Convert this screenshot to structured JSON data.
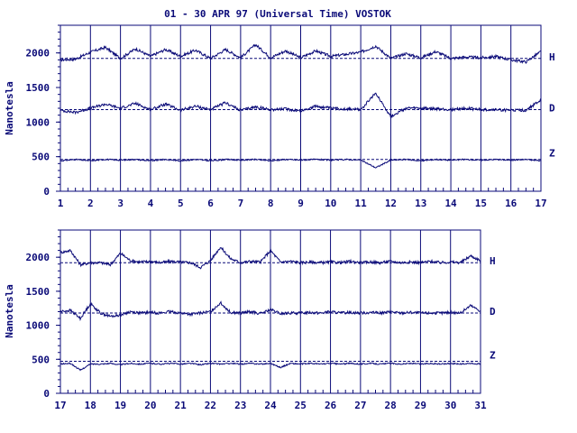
{
  "title": "01 - 30 APR 97 (Universal Time) VOSTOK",
  "colors": {
    "ink": "#0a0a78",
    "background": "#ffffff"
  },
  "chart_data": [
    {
      "type": "line",
      "panel": "top",
      "ylabel": "Nanotesla",
      "ylim": [
        0,
        2400
      ],
      "yticks": [
        0,
        500,
        1000,
        1500,
        2000
      ],
      "xlim": [
        1,
        17
      ],
      "xticks": [
        "1",
        "2",
        "3",
        "4",
        "5",
        "6",
        "7",
        "8",
        "9",
        "10",
        "11",
        "12",
        "13",
        "14",
        "15",
        "16",
        "17"
      ],
      "grid": true,
      "series": [
        {
          "name": "H",
          "baseline": 1920,
          "values": [
            1900,
            1910,
            2010,
            2080,
            1920,
            2060,
            1950,
            2050,
            1950,
            2040,
            1920,
            2050,
            1930,
            2120,
            1930,
            2030,
            1930,
            2030,
            1950,
            1980,
            2010,
            2100,
            1920,
            1990,
            1930,
            2020,
            1920,
            1940,
            1930,
            1950,
            1900,
            1870,
            2020
          ]
        },
        {
          "name": "D",
          "baseline": 1180,
          "values": [
            1170,
            1140,
            1200,
            1260,
            1200,
            1270,
            1180,
            1260,
            1170,
            1230,
            1180,
            1280,
            1170,
            1220,
            1180,
            1190,
            1160,
            1230,
            1200,
            1190,
            1180,
            1420,
            1080,
            1200,
            1200,
            1190,
            1180,
            1200,
            1180,
            1180,
            1170,
            1170,
            1320
          ]
        },
        {
          "name": "Z",
          "baseline": 460,
          "values": [
            440,
            460,
            440,
            460,
            450,
            460,
            440,
            460,
            440,
            460,
            440,
            460,
            450,
            460,
            440,
            460,
            450,
            460,
            450,
            460,
            450,
            340,
            450,
            460,
            440,
            460,
            450,
            460,
            450,
            460,
            450,
            460,
            440
          ]
        }
      ]
    },
    {
      "type": "line",
      "panel": "bottom",
      "ylabel": "Nanotesla",
      "ylim": [
        0,
        2400
      ],
      "yticks": [
        0,
        500,
        1000,
        1500,
        2000
      ],
      "xlim": [
        17,
        31
      ],
      "xticks": [
        "17",
        "18",
        "19",
        "20",
        "21",
        "22",
        "23",
        "24",
        "25",
        "26",
        "27",
        "28",
        "29",
        "30",
        "31"
      ],
      "grid": true,
      "series": [
        {
          "name": "H",
          "baseline": 1920,
          "values": [
            2070,
            2100,
            1890,
            1920,
            1920,
            1890,
            2060,
            1950,
            1930,
            1940,
            1920,
            1940,
            1930,
            1920,
            1850,
            1950,
            2150,
            1980,
            1920,
            1940,
            1930,
            2100,
            1930,
            1940,
            1920,
            1930,
            1920,
            1930,
            1920,
            1940,
            1920,
            1930,
            1920,
            1940,
            1920,
            1930,
            1920,
            1940,
            1920,
            1930,
            1920,
            2020,
            1950
          ]
        },
        {
          "name": "D",
          "baseline": 1180,
          "values": [
            1200,
            1220,
            1100,
            1320,
            1180,
            1130,
            1150,
            1200,
            1180,
            1190,
            1180,
            1200,
            1180,
            1160,
            1180,
            1200,
            1330,
            1190,
            1180,
            1200,
            1170,
            1230,
            1170,
            1180,
            1180,
            1190,
            1180,
            1200,
            1180,
            1190,
            1180,
            1190,
            1180,
            1200,
            1180,
            1190,
            1180,
            1180,
            1180,
            1190,
            1180,
            1290,
            1210
          ]
        },
        {
          "name": "Z",
          "baseline": 470,
          "values": [
            430,
            440,
            340,
            430,
            430,
            440,
            420,
            440,
            430,
            440,
            430,
            440,
            430,
            440,
            420,
            440,
            430,
            440,
            430,
            440,
            430,
            440,
            380,
            440,
            430,
            440,
            430,
            440,
            430,
            440,
            430,
            440,
            430,
            440,
            430,
            440,
            430,
            440,
            430,
            440,
            430,
            440,
            430
          ]
        }
      ]
    }
  ]
}
